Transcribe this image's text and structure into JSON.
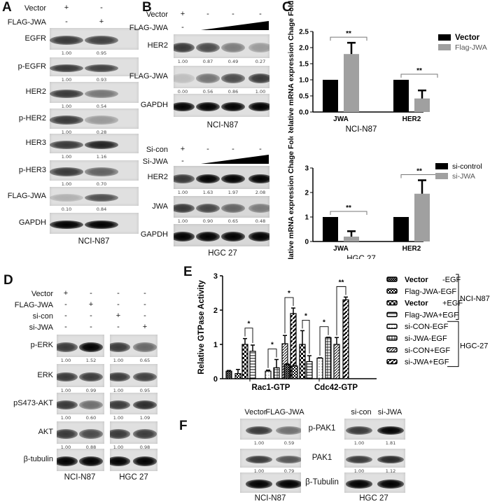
{
  "panel_a": {
    "label": "A",
    "conditions": [
      {
        "name": "Vector",
        "lanes": [
          "+",
          "-"
        ]
      },
      {
        "name": "FLAG-JWA",
        "lanes": [
          "-",
          "+"
        ]
      }
    ],
    "rows": [
      {
        "name": "EGFR",
        "quant": [
          "1.00",
          "0.95"
        ]
      },
      {
        "name": "p-EGFR",
        "quant": [
          "1.00",
          "0.93"
        ]
      },
      {
        "name": "HER2",
        "quant": [
          "1.00",
          "0.54"
        ]
      },
      {
        "name": "p-HER2",
        "quant": [
          "1.00",
          "0.28"
        ]
      },
      {
        "name": "HER3",
        "quant": [
          "1.00",
          "1.16"
        ]
      },
      {
        "name": "p-HER3",
        "quant": [
          "1.00",
          "0.70"
        ]
      },
      {
        "name": "FLAG-JWA",
        "quant": [
          "0.10",
          "0.84"
        ]
      },
      {
        "name": "GAPDH",
        "quant": null
      }
    ],
    "cell_lines": [
      "NCI-N87"
    ]
  },
  "panel_b_top": {
    "label": "B",
    "conditions": [
      {
        "name": "Vector",
        "lanes": [
          "+",
          "-",
          "-",
          "-"
        ]
      },
      {
        "name": "FLAG-JWA",
        "lanes": [
          "-"
        ],
        "ramp": "increasing-dose-triangle"
      }
    ],
    "rows": [
      {
        "name": "HER2",
        "quant": [
          "1.00",
          "0.87",
          "0.49",
          "0.27"
        ]
      },
      {
        "name": "FLAG-JWA",
        "quant": [
          "0.00",
          "0.56",
          "0.86",
          "1.00"
        ]
      },
      {
        "name": "GAPDH",
        "quant": null
      }
    ],
    "cell_lines": [
      "NCI-N87"
    ]
  },
  "panel_b_bottom": {
    "conditions": [
      {
        "name": "Si-con",
        "lanes": [
          "+",
          "-",
          "-",
          "-"
        ]
      },
      {
        "name": "Si-JWA",
        "lanes": [
          "-"
        ],
        "ramp": "increasing-dose-triangle"
      }
    ],
    "rows": [
      {
        "name": "HER2",
        "quant": [
          "1.00",
          "1.63",
          "1.97",
          "2.08"
        ]
      },
      {
        "name": "JWA",
        "quant": [
          "1.00",
          "0.90",
          "0.65",
          "0.48"
        ]
      },
      {
        "name": "GAPDH",
        "quant": null
      }
    ],
    "cell_lines": [
      "HGC 27"
    ]
  },
  "panel_d": {
    "label": "D",
    "conditions": [
      {
        "name": "Vector",
        "lanes": [
          "+",
          "-",
          "-",
          "-"
        ]
      },
      {
        "name": "FLAG-JWA",
        "lanes": [
          "-",
          "+",
          "-",
          "-"
        ]
      },
      {
        "name": "si-con",
        "lanes": [
          "-",
          "-",
          "+",
          "-"
        ]
      },
      {
        "name": "si-JWA",
        "lanes": [
          "-",
          "-",
          "-",
          "+"
        ]
      }
    ],
    "rows": [
      {
        "name": "p-ERK",
        "quant": [
          "1.00",
          "1.52",
          "1.00",
          "0.65"
        ]
      },
      {
        "name": "ERK",
        "quant": [
          "1.00",
          "0.99",
          "1.00",
          "0.95"
        ]
      },
      {
        "name": "pS473-AKT",
        "quant": [
          "1.00",
          "0.60",
          "1.00",
          "1.09"
        ]
      },
      {
        "name": "AKT",
        "quant": [
          "1.00",
          "0.88",
          "1.00",
          "0.98"
        ]
      },
      {
        "name": "β-tubulin",
        "quant": null
      }
    ],
    "cell_lines": [
      "NCI-N87",
      "HGC 27"
    ]
  },
  "panel_f": {
    "label": "F",
    "lane_headers": [
      "Vector",
      "FLAG-JWA",
      "si-con",
      "si-JWA"
    ],
    "rows": [
      {
        "name": "p-PAK1",
        "quant": [
          "1.00",
          "0.59",
          "1.00",
          "1.81"
        ]
      },
      {
        "name": "PAK1",
        "quant": [
          "1.00",
          "0.79",
          "1.00",
          "1.12"
        ]
      },
      {
        "name": "β-Tubulin",
        "quant": null
      }
    ],
    "cell_lines": [
      "NCI-N87",
      "HGC 27"
    ]
  },
  "panel_c": {
    "label": "C"
  },
  "panel_e": {
    "label": "E",
    "legend_groups": [
      {
        "name": "NCI-N87"
      },
      {
        "name": "HGC-27"
      }
    ]
  },
  "chart_data": [
    {
      "id": "c_top",
      "type": "bar",
      "ylabel": "Relative mRNA expression Chage Fold",
      "xlabel": "NCI-N87",
      "categories": [
        "JWA",
        "HER2"
      ],
      "ylim": [
        0,
        2.5
      ],
      "yticks": [
        "0.0",
        "0.5",
        "1.0",
        "1.5",
        "2.0",
        "2.5"
      ],
      "legend_position": "top-right",
      "series": [
        {
          "name": "Vector",
          "values": [
            1.0,
            1.0
          ],
          "errors": [
            0,
            0
          ],
          "color": "#000000"
        },
        {
          "name": "Flag-JWA",
          "values": [
            1.8,
            0.42
          ],
          "errors": [
            0.35,
            0.25
          ],
          "color": "#a0a0a0"
        }
      ],
      "significance": [
        {
          "category": "JWA",
          "label": "**"
        },
        {
          "category": "HER2",
          "label": "**"
        }
      ]
    },
    {
      "id": "c_bottom",
      "type": "bar",
      "ylabel": "Relative mRNA expression Chage Fold",
      "xlabel": "HGC 27",
      "categories": [
        "JWA",
        "HER2"
      ],
      "ylim": [
        0,
        3
      ],
      "yticks": [
        "0",
        "1",
        "2",
        "3"
      ],
      "legend_position": "top-right",
      "series": [
        {
          "name": "si-control",
          "values": [
            1.0,
            1.0
          ],
          "errors": [
            0,
            0
          ],
          "color": "#000000"
        },
        {
          "name": "si-JWA",
          "values": [
            0.2,
            1.95
          ],
          "errors": [
            0.22,
            0.55
          ],
          "color": "#a0a0a0"
        }
      ],
      "significance": [
        {
          "category": "JWA",
          "label": "**"
        },
        {
          "category": "HER2",
          "label": "**"
        }
      ]
    },
    {
      "id": "e",
      "type": "bar",
      "ylabel": "Relative GTPase Activity",
      "categories": [
        "Rac1-GTP",
        "Cdc42-GTP"
      ],
      "ylim": [
        0,
        3
      ],
      "yticks": [
        "0",
        "1",
        "2",
        "3"
      ],
      "legend_position": "right",
      "series": [
        {
          "name": "Vector -EGF",
          "name_bold": "Vector",
          "name_rest": "-EGF",
          "values": [
            0.22,
            0.42
          ],
          "errors": [
            0.02,
            0.01
          ],
          "pattern": "fine-crosshatch"
        },
        {
          "name": "Flag-JWA-EGF",
          "values": [
            0.15,
            0.37
          ],
          "errors": [
            0.12,
            0.01
          ],
          "pattern": "checker"
        },
        {
          "name": "Vector +EGF",
          "name_bold": "Vector",
          "name_rest": "+EGF",
          "values": [
            1.0,
            1.0
          ],
          "errors": [
            0.17,
            0.4
          ],
          "pattern": "large-checker"
        },
        {
          "name": "Flag-JWA+EGF",
          "values": [
            0.8,
            0.5
          ],
          "errors": [
            0.18,
            0.17
          ],
          "pattern": "horizontal-lines"
        },
        {
          "name": "si-CON-EGF",
          "values": [
            0.22,
            0.6
          ],
          "errors": [
            0.03,
            0.01
          ],
          "pattern": "dots"
        },
        {
          "name": "si-JWA-EGF",
          "values": [
            0.32,
            1.2
          ],
          "errors": [
            0.24,
            0.01
          ],
          "pattern": "grid"
        },
        {
          "name": "si-CON+EGF",
          "values": [
            1.02,
            1.0
          ],
          "errors": [
            0.24,
            0.2
          ],
          "pattern": "thin-diagonal"
        },
        {
          "name": "si-JWA+EGF",
          "values": [
            1.9,
            2.3
          ],
          "errors": [
            0.16,
            0.08
          ],
          "pattern": "thick-diagonal"
        }
      ],
      "significance": [
        {
          "category": "Rac1-GTP",
          "pair": [
            3,
            4
          ],
          "label": "*"
        },
        {
          "category": "Rac1-GTP",
          "pair": [
            5,
            6
          ],
          "label": "*"
        },
        {
          "category": "Rac1-GTP",
          "pair": [
            7,
            8
          ],
          "label": "*"
        },
        {
          "category": "Cdc42-GTP",
          "pair": [
            3,
            4
          ],
          "label": "*"
        },
        {
          "category": "Cdc42-GTP",
          "pair": [
            5,
            6
          ],
          "label": "*"
        },
        {
          "category": "Cdc42-GTP",
          "pair": [
            7,
            8
          ],
          "label": "**"
        }
      ]
    }
  ]
}
